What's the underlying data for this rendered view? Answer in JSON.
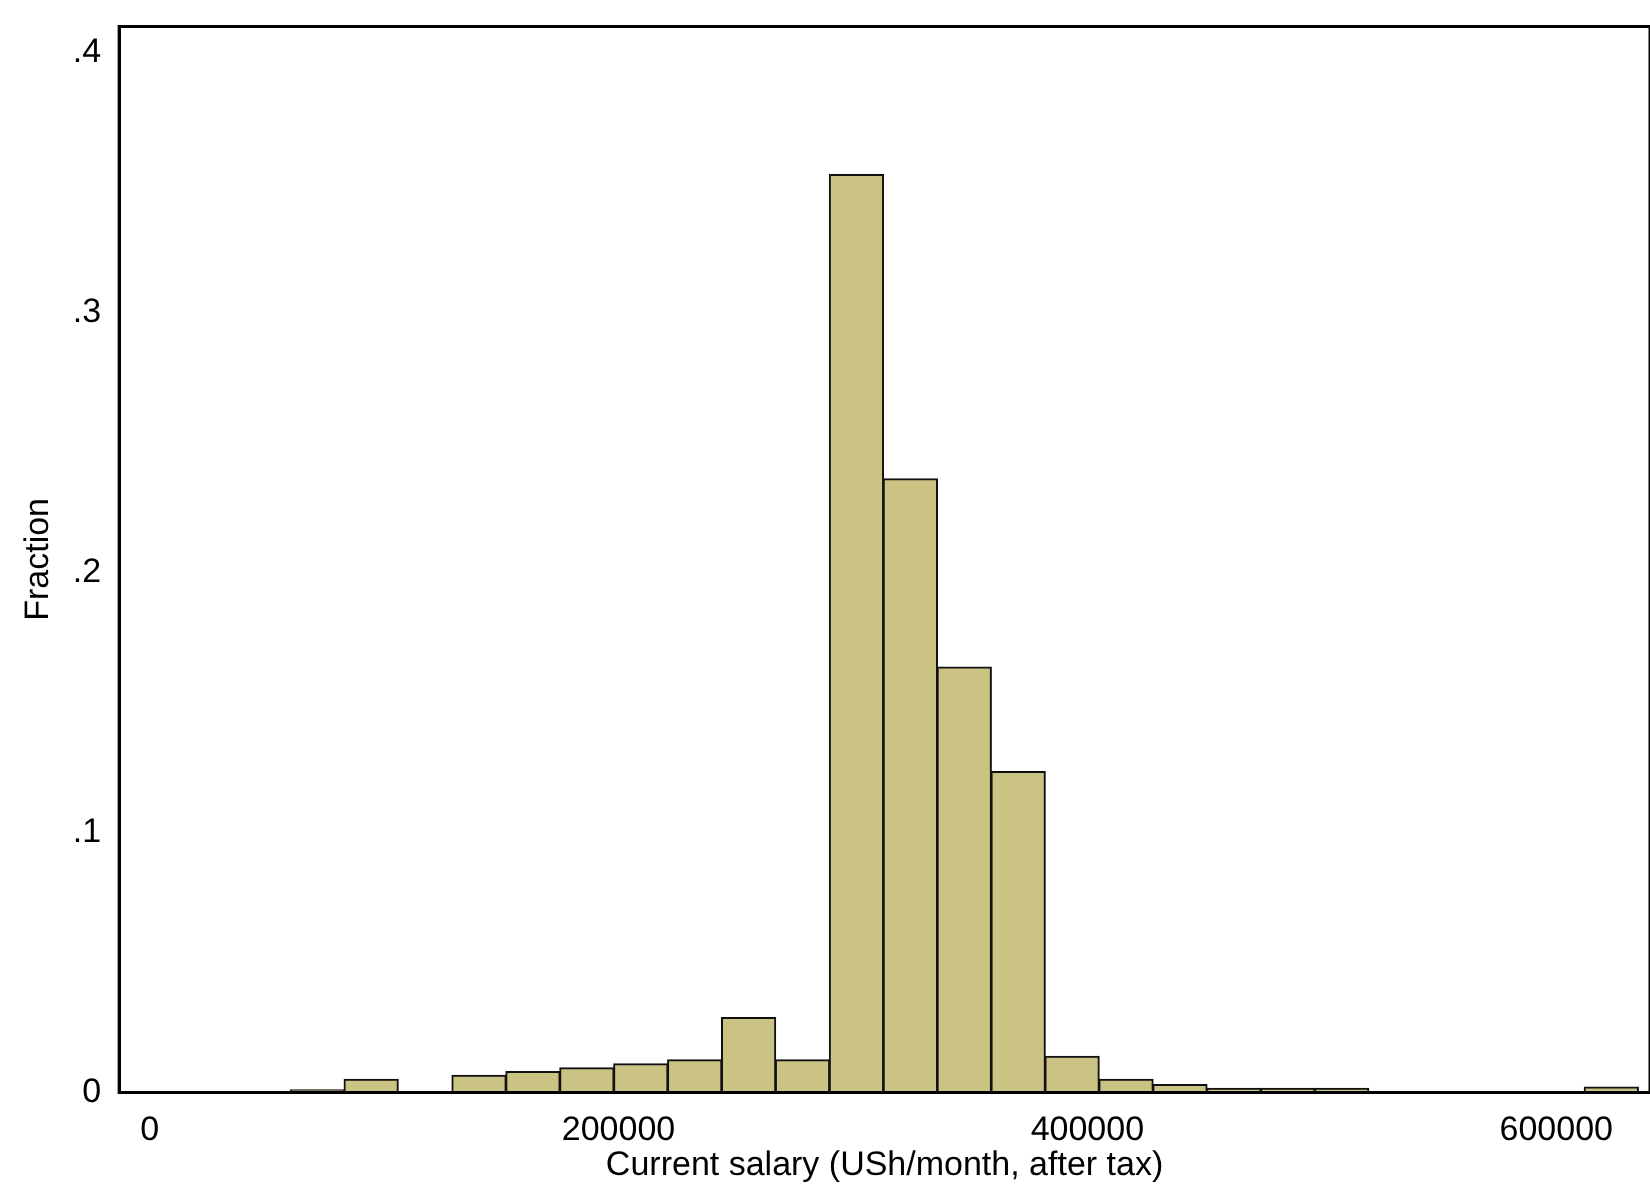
{
  "chart_data": {
    "type": "histogram",
    "xlabel": "Current salary (USh/month, after tax)",
    "ylabel": "Fraction",
    "bins": [
      60000,
      83000,
      106000,
      129000,
      152000,
      175000,
      198000,
      221000,
      244000,
      267000,
      290000,
      313000,
      336000,
      359000,
      382000,
      405000,
      428000,
      451000,
      474000,
      497000,
      520000,
      543000,
      566000,
      589000,
      612000,
      635000
    ],
    "values": [
      0.001,
      0.005,
      0,
      0.0065,
      0.008,
      0.0094,
      0.011,
      0.0125,
      0.0287,
      0.0125,
      0.353,
      0.236,
      0.1636,
      0.1234,
      0.0138,
      0.005,
      0.003,
      0.0015,
      0.0015,
      0.0015,
      0,
      0,
      0,
      0,
      0.002
    ],
    "color": "#cbc383",
    "xlim": [
      -13000,
      640000
    ],
    "xticks": [
      0,
      200000,
      400000,
      600000
    ],
    "ylim": [
      0,
      0.41
    ],
    "yticks": [
      0,
      {
        "value": 0.1,
        "label": ".1"
      },
      {
        "value": 0.2,
        "label": ".2"
      },
      {
        "value": 0.3,
        "label": ".3"
      },
      {
        "value": 0.4,
        "label": ".4"
      }
    ],
    "grid": false
  }
}
